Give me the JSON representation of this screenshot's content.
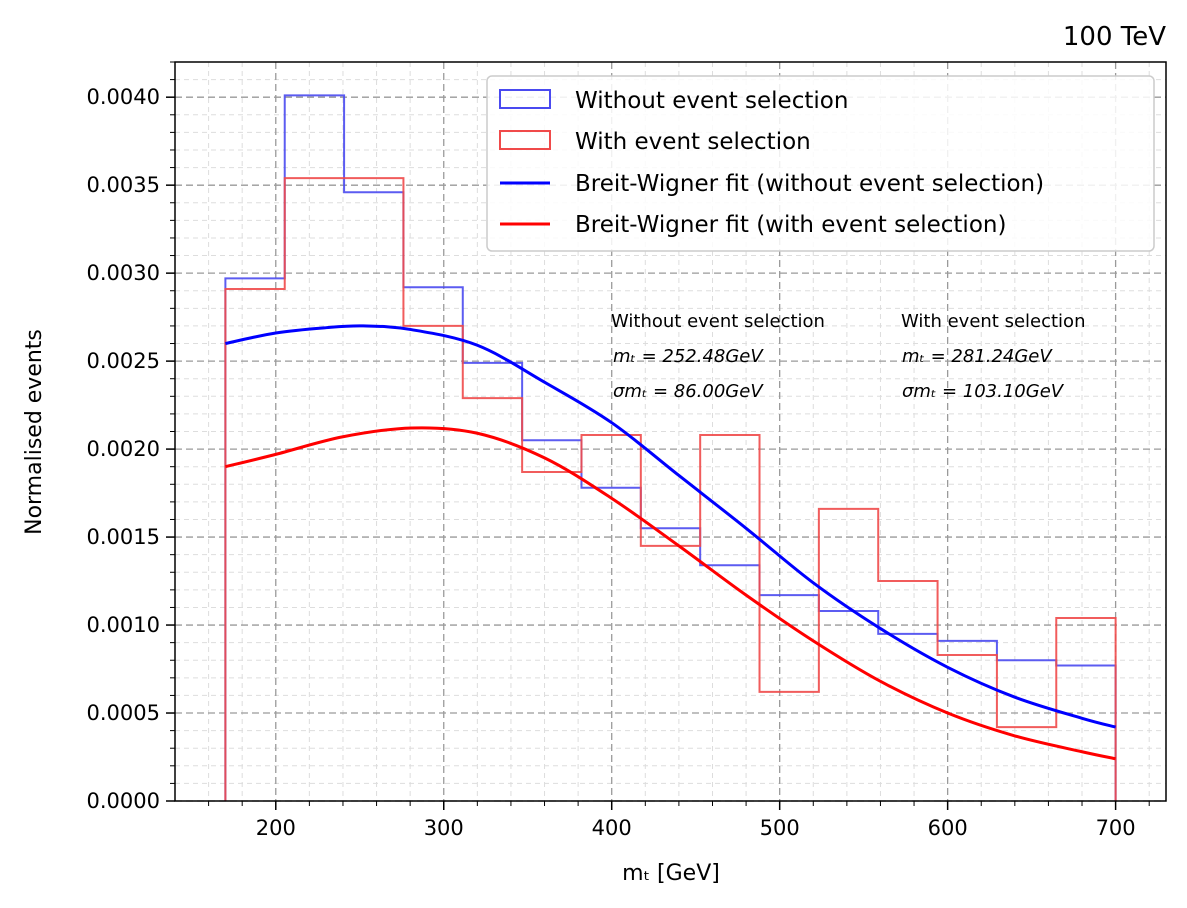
{
  "chart_data": {
    "type": "histogram-with-fit",
    "title_right": "100 TeV",
    "xlabel": "mₜ [GeV]",
    "ylabel": "Normalised events",
    "xlim": [
      140,
      730
    ],
    "ylim": [
      0,
      0.0042
    ],
    "xticks": [
      200,
      300,
      400,
      500,
      600,
      700
    ],
    "xtick_labels": [
      "200",
      "300",
      "400",
      "500",
      "600",
      "700"
    ],
    "yticks": [
      0,
      0.0005,
      0.001,
      0.0015,
      0.002,
      0.0025,
      0.003,
      0.0035,
      0.004
    ],
    "ytick_labels": [
      "0.0000",
      "0.0005",
      "0.0010",
      "0.0015",
      "0.0020",
      "0.0025",
      "0.0030",
      "0.0035",
      "0.0040"
    ],
    "grid": true,
    "legend_position": "top-right",
    "bin_edges": [
      170,
      205.33,
      240.67,
      276,
      311.33,
      346.67,
      382,
      417.33,
      452.67,
      488,
      523.33,
      558.67,
      594,
      629.33,
      664.67,
      700
    ],
    "series": [
      {
        "name": "Without event selection",
        "kind": "step-histogram",
        "color": "#4a4af0",
        "values": [
          0.00297,
          0.00401,
          0.00346,
          0.00292,
          0.00249,
          0.00205,
          0.00178,
          0.00155,
          0.00134,
          0.00117,
          0.00108,
          0.00095,
          0.00091,
          0.0008,
          0.00077
        ]
      },
      {
        "name": "With event selection",
        "kind": "step-histogram",
        "color": "#f04a4a",
        "values": [
          0.00291,
          0.00354,
          0.00354,
          0.0027,
          0.00229,
          0.00187,
          0.00208,
          0.00145,
          0.00208,
          0.00062,
          0.00166,
          0.00125,
          0.00083,
          0.00042,
          0.00104
        ]
      },
      {
        "name": "Breit-Wigner fit (without event selection)",
        "kind": "curve",
        "color": "#0000ff",
        "x": [
          170,
          200,
          230,
          252,
          280,
          320,
          360,
          400,
          440,
          480,
          520,
          560,
          600,
          640,
          680,
          700
        ],
        "y": [
          0.0026,
          0.00266,
          0.00269,
          0.0027,
          0.00268,
          0.00259,
          0.00238,
          0.00215,
          0.00185,
          0.00155,
          0.00124,
          0.00098,
          0.00076,
          0.00059,
          0.00047,
          0.00042
        ]
      },
      {
        "name": "Breit-Wigner fit (with event selection)",
        "kind": "curve",
        "color": "#ff0000",
        "x": [
          170,
          200,
          240,
          281,
          320,
          360,
          400,
          440,
          480,
          520,
          560,
          600,
          640,
          680,
          700
        ],
        "y": [
          0.0019,
          0.00197,
          0.00207,
          0.00212,
          0.00209,
          0.00195,
          0.00172,
          0.00145,
          0.00117,
          0.00091,
          0.00068,
          0.0005,
          0.00037,
          0.00028,
          0.00024
        ]
      }
    ],
    "annotations": {
      "without": {
        "heading": "Without event selection",
        "mean": "mₜ = 252.48GeV",
        "sigma": "σmₜ = 86.00GeV"
      },
      "with": {
        "heading": "With event selection",
        "mean": "mₜ = 281.24GeV",
        "sigma": "σmₜ = 103.10GeV"
      }
    }
  }
}
